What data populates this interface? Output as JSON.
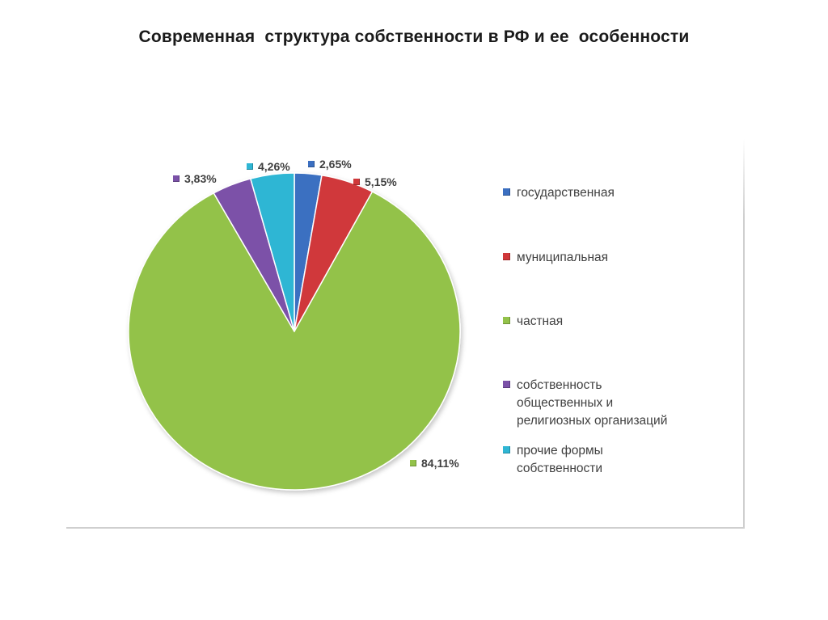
{
  "page": {
    "title": "Современная  структура собственности в РФ и ее  особенности"
  },
  "chart_data": {
    "type": "pie",
    "title": "",
    "start_angle_deg": 0,
    "categories": [
      "государственная",
      "муниципальная",
      "частная",
      "собственность общественных и религиозных организаций",
      "прочие формы собственности"
    ],
    "values": [
      2.65,
      5.15,
      84.11,
      3.83,
      4.26
    ],
    "value_labels": [
      "2,65%",
      "5,15%",
      "84,11%",
      "3,83%",
      "4,26%"
    ],
    "colors": [
      "#3b6fc1",
      "#d0383a",
      "#93c24a",
      "#7b51a8",
      "#2fb6d4"
    ],
    "legend": {
      "position": "right",
      "lines": [
        [
          "государственная"
        ],
        [
          "муниципальная"
        ],
        [
          "частная"
        ],
        [
          "собственность",
          "общественных и",
          "религиозных организаций"
        ],
        [
          "прочие формы",
          "собственности"
        ]
      ]
    }
  }
}
